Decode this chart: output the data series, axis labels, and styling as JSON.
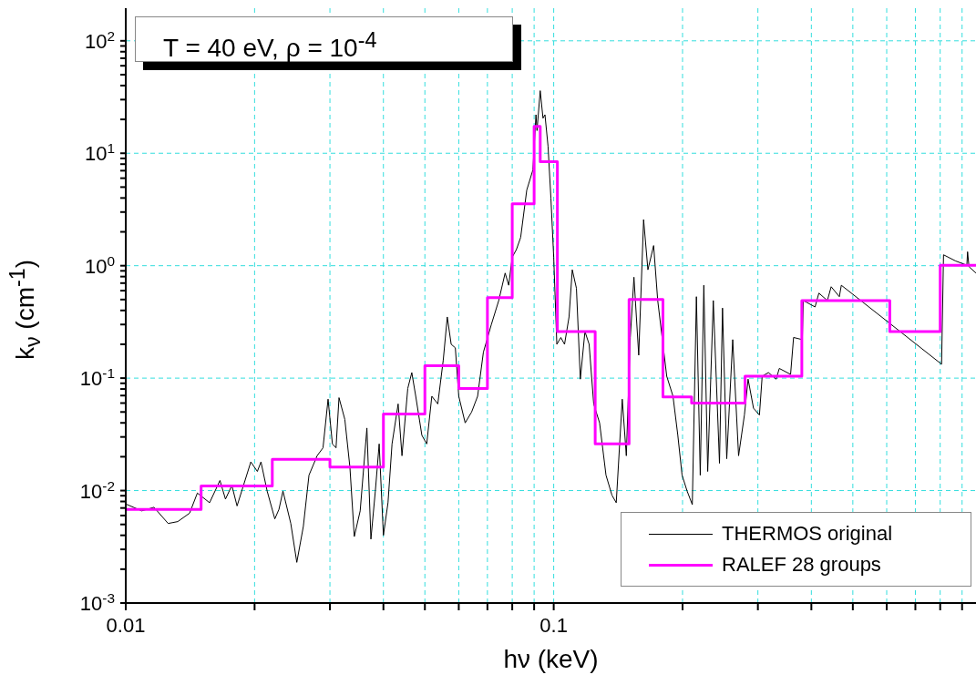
{
  "chart_data": {
    "type": "line",
    "title": "T = 40 eV, ρ = 10$^{-4}$",
    "xlabel": "hν (keV)",
    "ylabel": "k$_{ν}$ (cm$^{-1}$)",
    "log": "xy",
    "grid": true,
    "legend": "bottom right",
    "marker": "none",
    "xlim": [
      0.01,
      0.97
    ],
    "xticks": [
      0.01,
      {
        "value": 0.02,
        "label": null
      },
      {
        "value": 0.03,
        "label": null
      },
      {
        "value": 0.04,
        "label": null
      },
      {
        "value": 0.05,
        "label": null
      },
      {
        "value": 0.06,
        "label": null
      },
      {
        "value": 0.07,
        "label": null
      },
      {
        "value": 0.08,
        "label": null
      },
      {
        "value": 0.09,
        "label": null
      },
      0.1,
      {
        "value": 0.2,
        "label": null
      },
      {
        "value": 0.3,
        "label": null
      },
      {
        "value": 0.4,
        "label": null
      },
      {
        "value": 0.5,
        "label": null
      },
      {
        "value": 0.6,
        "label": null
      },
      {
        "value": 0.7,
        "label": null
      },
      {
        "value": 0.8,
        "label": null
      },
      {
        "value": 0.9,
        "label": null
      }
    ],
    "ylim": [
      0.001,
      195
    ],
    "yticks": [
      {
        "value": 0.001,
        "label": "10$^{-3}$"
      },
      {
        "value": 0.002,
        "label": null
      },
      {
        "value": 0.003,
        "label": null
      },
      {
        "value": 0.004,
        "label": null
      },
      {
        "value": 0.005,
        "label": null
      },
      {
        "value": 0.006,
        "label": null
      },
      {
        "value": 0.007,
        "label": null
      },
      {
        "value": 0.008,
        "label": null
      },
      {
        "value": 0.009,
        "label": null
      },
      {
        "value": 0.01,
        "label": "10$^{-2}$"
      },
      {
        "value": 0.02,
        "label": null
      },
      {
        "value": 0.03,
        "label": null
      },
      {
        "value": 0.04,
        "label": null
      },
      {
        "value": 0.05,
        "label": null
      },
      {
        "value": 0.06,
        "label": null
      },
      {
        "value": 0.07,
        "label": null
      },
      {
        "value": 0.08,
        "label": null
      },
      {
        "value": 0.09,
        "label": null
      },
      {
        "value": 0.1,
        "label": "10$^{-1}$"
      },
      {
        "value": 0.2,
        "label": null
      },
      {
        "value": 0.3,
        "label": null
      },
      {
        "value": 0.4,
        "label": null
      },
      {
        "value": 0.5,
        "label": null
      },
      {
        "value": 0.6,
        "label": null
      },
      {
        "value": 0.7,
        "label": null
      },
      {
        "value": 0.8,
        "label": null
      },
      {
        "value": 0.9,
        "label": null
      },
      {
        "value": 1,
        "label": "10$^{0}$"
      },
      {
        "value": 2,
        "label": null
      },
      {
        "value": 3,
        "label": null
      },
      {
        "value": 4,
        "label": null
      },
      {
        "value": 5,
        "label": null
      },
      {
        "value": 6,
        "label": null
      },
      {
        "value": 7,
        "label": null
      },
      {
        "value": 8,
        "label": null
      },
      {
        "value": 9,
        "label": null
      },
      {
        "value": 10,
        "label": "10$^{1}$"
      },
      {
        "value": 20,
        "label": null
      },
      {
        "value": 30,
        "label": null
      },
      {
        "value": 40,
        "label": null
      },
      {
        "value": 50,
        "label": null
      },
      {
        "value": 60,
        "label": null
      },
      {
        "value": 70,
        "label": null
      },
      {
        "value": 80,
        "label": null
      },
      {
        "value": 90,
        "label": null
      },
      {
        "value": 100,
        "label": "10$^{2}$"
      }
    ],
    "series": [
      {
        "name": "THERMOS original",
        "type": "line",
        "color": "#000000",
        "x": [
          0.01,
          0.0109,
          0.01164,
          0.01256,
          0.01323,
          0.0141,
          0.0147,
          0.0157,
          0.0166,
          0.0171,
          0.0177,
          0.0182,
          0.0196,
          0.0203,
          0.0207,
          0.0214,
          0.0223,
          0.0228,
          0.0233,
          0.0243,
          0.0251,
          0.026,
          0.0268,
          0.028,
          0.0289,
          0.0297,
          0.0304,
          0.031,
          0.0315,
          0.0325,
          0.0334,
          0.0342,
          0.0353,
          0.0366,
          0.0374,
          0.0383,
          0.0391,
          0.04,
          0.041,
          0.0419,
          0.0433,
          0.0442,
          0.0456,
          0.0466,
          0.0476,
          0.0492,
          0.0505,
          0.0519,
          0.0536,
          0.0552,
          0.0564,
          0.0576,
          0.0589,
          0.06,
          0.0621,
          0.0643,
          0.0664,
          0.0685,
          0.0715,
          0.0744,
          0.077,
          0.0785,
          0.08,
          0.0818,
          0.0837,
          0.0865,
          0.0894,
          0.0909,
          0.0914,
          0.093,
          0.0944,
          0.0954,
          0.097,
          0.0985,
          0.1,
          0.1017,
          0.1039,
          0.106,
          0.1086,
          0.1105,
          0.113,
          0.1154,
          0.1183,
          0.121,
          0.124,
          0.128,
          0.1325,
          0.1368,
          0.14,
          0.1446,
          0.1478,
          0.151,
          0.154,
          0.158,
          0.1622,
          0.166,
          0.1712,
          0.175,
          0.18,
          0.1837,
          0.19,
          0.195,
          0.1995,
          0.205,
          0.2108,
          0.2155,
          0.22,
          0.2243,
          0.229,
          0.236,
          0.244,
          0.248,
          0.2537,
          0.262,
          0.2704,
          0.279,
          0.2846,
          0.293,
          0.3025,
          0.307,
          0.3175,
          0.331,
          0.3366,
          0.3577,
          0.3635,
          0.381,
          0.383,
          0.408,
          0.4165,
          0.436,
          0.445,
          0.465,
          0.47,
          0.806,
          0.8145,
          0.87,
          0.9235,
          0.927,
          0.934,
          0.97
        ],
        "values": [
          0.0076,
          0.0066,
          0.0071,
          0.0051,
          0.0053,
          0.0063,
          0.0095,
          0.0078,
          0.0123,
          0.0084,
          0.0111,
          0.0073,
          0.018,
          0.0148,
          0.018,
          0.0099,
          0.0056,
          0.0068,
          0.0099,
          0.0051,
          0.0023,
          0.0048,
          0.0137,
          0.0204,
          0.024,
          0.065,
          0.026,
          0.024,
          0.067,
          0.043,
          0.0162,
          0.0039,
          0.0066,
          0.036,
          0.0037,
          0.0099,
          0.026,
          0.004,
          0.0078,
          0.026,
          0.059,
          0.0204,
          0.081,
          0.112,
          0.069,
          0.031,
          0.026,
          0.069,
          0.059,
          0.145,
          0.35,
          0.2,
          0.186,
          0.069,
          0.04,
          0.05,
          0.069,
          0.17,
          0.3,
          0.49,
          0.86,
          0.67,
          1.19,
          1.39,
          1.78,
          4.7,
          7.1,
          22,
          15.9,
          36,
          20.5,
          22,
          11.5,
          4,
          1.19,
          0.2,
          0.23,
          0.2,
          0.35,
          0.92,
          0.63,
          0.098,
          0.26,
          0.2,
          0.059,
          0.04,
          0.0137,
          0.0091,
          0.0078,
          0.065,
          0.0204,
          0.23,
          0.79,
          0.16,
          2.57,
          0.92,
          1.51,
          0.49,
          0.2,
          0.104,
          0.069,
          0.031,
          0.0137,
          0.0099,
          0.0075,
          0.53,
          0.0137,
          0.67,
          0.0148,
          0.49,
          0.0175,
          0.42,
          0.0192,
          0.22,
          0.0204,
          0.047,
          0.098,
          0.054,
          0.047,
          0.104,
          0.112,
          0.098,
          0.122,
          0.108,
          0.23,
          0.22,
          0.49,
          0.43,
          0.57,
          0.49,
          0.65,
          0.53,
          0.67,
          0.133,
          1.25,
          1.1,
          1.01,
          1.33,
          0.98,
          0.86
        ]
      },
      {
        "name": "RALEF 28 groups",
        "type": "step",
        "color": "#ff00ff",
        "x": [
          0.01,
          0.015,
          0.022,
          0.03,
          0.04,
          0.05,
          0.06,
          0.07,
          0.08,
          0.09,
          0.093,
          0.102,
          0.125,
          0.15,
          0.18,
          0.21,
          0.28,
          0.38,
          0.61,
          0.8,
          0.97
        ],
        "values": [
          0.0068,
          0.011,
          0.019,
          0.0162,
          0.048,
          0.129,
          0.081,
          0.52,
          3.55,
          17.3,
          8.4,
          0.26,
          0.026,
          0.5,
          0.068,
          0.06,
          0.104,
          0.49,
          0.26,
          1.01,
          1.01
        ]
      }
    ]
  }
}
